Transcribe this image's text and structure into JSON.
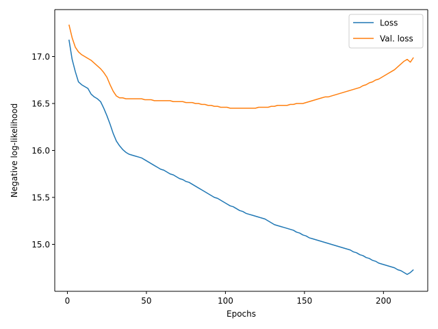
{
  "chart_data": {
    "type": "line",
    "xlabel": "Epochs",
    "ylabel": "Negative log-likelihood",
    "xlim": [
      -8,
      228
    ],
    "ylim": [
      14.5,
      17.5
    ],
    "xticks": [
      0,
      50,
      100,
      150,
      200
    ],
    "yticks": [
      15.0,
      15.5,
      16.0,
      16.5,
      17.0
    ],
    "xtick_labels": [
      "0",
      "50",
      "100",
      "150",
      "200"
    ],
    "ytick_labels": [
      "15.0",
      "15.5",
      "16.0",
      "16.5",
      "17.0"
    ],
    "grid": false,
    "legend_position": "top-right",
    "series": [
      {
        "name": "Loss",
        "color": "#1f77b4",
        "points": [
          [
            1,
            17.18
          ],
          [
            3,
            16.97
          ],
          [
            5,
            16.84
          ],
          [
            7,
            16.73
          ],
          [
            9,
            16.7
          ],
          [
            11,
            16.68
          ],
          [
            13,
            16.66
          ],
          [
            15,
            16.6
          ],
          [
            17,
            16.57
          ],
          [
            19,
            16.55
          ],
          [
            21,
            16.52
          ],
          [
            23,
            16.45
          ],
          [
            25,
            16.37
          ],
          [
            27,
            16.28
          ],
          [
            29,
            16.18
          ],
          [
            31,
            16.1
          ],
          [
            33,
            16.05
          ],
          [
            35,
            16.01
          ],
          [
            37,
            15.98
          ],
          [
            39,
            15.96
          ],
          [
            41,
            15.95
          ],
          [
            43,
            15.94
          ],
          [
            45,
            15.93
          ],
          [
            47,
            15.92
          ],
          [
            49,
            15.9
          ],
          [
            51,
            15.88
          ],
          [
            53,
            15.86
          ],
          [
            55,
            15.84
          ],
          [
            57,
            15.82
          ],
          [
            59,
            15.8
          ],
          [
            61,
            15.79
          ],
          [
            63,
            15.77
          ],
          [
            65,
            15.75
          ],
          [
            67,
            15.74
          ],
          [
            69,
            15.72
          ],
          [
            71,
            15.7
          ],
          [
            73,
            15.69
          ],
          [
            75,
            15.67
          ],
          [
            77,
            15.66
          ],
          [
            79,
            15.64
          ],
          [
            81,
            15.62
          ],
          [
            83,
            15.6
          ],
          [
            85,
            15.58
          ],
          [
            87,
            15.56
          ],
          [
            89,
            15.54
          ],
          [
            91,
            15.52
          ],
          [
            93,
            15.5
          ],
          [
            95,
            15.49
          ],
          [
            97,
            15.47
          ],
          [
            99,
            15.45
          ],
          [
            101,
            15.43
          ],
          [
            103,
            15.41
          ],
          [
            105,
            15.4
          ],
          [
            107,
            15.38
          ],
          [
            109,
            15.36
          ],
          [
            111,
            15.35
          ],
          [
            113,
            15.33
          ],
          [
            115,
            15.32
          ],
          [
            117,
            15.31
          ],
          [
            119,
            15.3
          ],
          [
            121,
            15.29
          ],
          [
            123,
            15.28
          ],
          [
            125,
            15.27
          ],
          [
            127,
            15.25
          ],
          [
            129,
            15.23
          ],
          [
            131,
            15.21
          ],
          [
            133,
            15.2
          ],
          [
            135,
            15.19
          ],
          [
            137,
            15.18
          ],
          [
            139,
            15.17
          ],
          [
            141,
            15.16
          ],
          [
            143,
            15.15
          ],
          [
            145,
            15.13
          ],
          [
            147,
            15.12
          ],
          [
            149,
            15.1
          ],
          [
            151,
            15.09
          ],
          [
            153,
            15.07
          ],
          [
            155,
            15.06
          ],
          [
            157,
            15.05
          ],
          [
            159,
            15.04
          ],
          [
            161,
            15.03
          ],
          [
            163,
            15.02
          ],
          [
            165,
            15.01
          ],
          [
            167,
            15.0
          ],
          [
            169,
            14.99
          ],
          [
            171,
            14.98
          ],
          [
            173,
            14.97
          ],
          [
            175,
            14.96
          ],
          [
            177,
            14.95
          ],
          [
            179,
            14.94
          ],
          [
            181,
            14.92
          ],
          [
            183,
            14.91
          ],
          [
            185,
            14.89
          ],
          [
            187,
            14.88
          ],
          [
            189,
            14.86
          ],
          [
            191,
            14.85
          ],
          [
            193,
            14.83
          ],
          [
            195,
            14.82
          ],
          [
            197,
            14.8
          ],
          [
            199,
            14.79
          ],
          [
            201,
            14.78
          ],
          [
            203,
            14.77
          ],
          [
            205,
            14.76
          ],
          [
            207,
            14.75
          ],
          [
            209,
            14.73
          ],
          [
            211,
            14.72
          ],
          [
            213,
            14.7
          ],
          [
            215,
            14.68
          ],
          [
            217,
            14.7
          ],
          [
            219,
            14.73
          ]
        ]
      },
      {
        "name": "Val. loss",
        "color": "#ff7f0e",
        "points": [
          [
            1,
            17.34
          ],
          [
            3,
            17.2
          ],
          [
            5,
            17.1
          ],
          [
            7,
            17.05
          ],
          [
            9,
            17.02
          ],
          [
            11,
            17.0
          ],
          [
            13,
            16.98
          ],
          [
            15,
            16.96
          ],
          [
            17,
            16.93
          ],
          [
            19,
            16.9
          ],
          [
            21,
            16.87
          ],
          [
            23,
            16.83
          ],
          [
            25,
            16.78
          ],
          [
            27,
            16.7
          ],
          [
            29,
            16.63
          ],
          [
            31,
            16.58
          ],
          [
            33,
            16.56
          ],
          [
            35,
            16.56
          ],
          [
            37,
            16.55
          ],
          [
            39,
            16.55
          ],
          [
            41,
            16.55
          ],
          [
            43,
            16.55
          ],
          [
            45,
            16.55
          ],
          [
            47,
            16.55
          ],
          [
            49,
            16.54
          ],
          [
            51,
            16.54
          ],
          [
            53,
            16.54
          ],
          [
            55,
            16.53
          ],
          [
            57,
            16.53
          ],
          [
            59,
            16.53
          ],
          [
            61,
            16.53
          ],
          [
            63,
            16.53
          ],
          [
            65,
            16.53
          ],
          [
            67,
            16.52
          ],
          [
            69,
            16.52
          ],
          [
            71,
            16.52
          ],
          [
            73,
            16.52
          ],
          [
            75,
            16.51
          ],
          [
            77,
            16.51
          ],
          [
            79,
            16.51
          ],
          [
            81,
            16.5
          ],
          [
            83,
            16.5
          ],
          [
            85,
            16.49
          ],
          [
            87,
            16.49
          ],
          [
            89,
            16.48
          ],
          [
            91,
            16.48
          ],
          [
            93,
            16.47
          ],
          [
            95,
            16.47
          ],
          [
            97,
            16.46
          ],
          [
            99,
            16.46
          ],
          [
            101,
            16.46
          ],
          [
            103,
            16.45
          ],
          [
            105,
            16.45
          ],
          [
            107,
            16.45
          ],
          [
            109,
            16.45
          ],
          [
            111,
            16.45
          ],
          [
            113,
            16.45
          ],
          [
            115,
            16.45
          ],
          [
            117,
            16.45
          ],
          [
            119,
            16.45
          ],
          [
            121,
            16.46
          ],
          [
            123,
            16.46
          ],
          [
            125,
            16.46
          ],
          [
            127,
            16.46
          ],
          [
            129,
            16.47
          ],
          [
            131,
            16.47
          ],
          [
            133,
            16.48
          ],
          [
            135,
            16.48
          ],
          [
            137,
            16.48
          ],
          [
            139,
            16.48
          ],
          [
            141,
            16.49
          ],
          [
            143,
            16.49
          ],
          [
            145,
            16.5
          ],
          [
            147,
            16.5
          ],
          [
            149,
            16.5
          ],
          [
            151,
            16.51
          ],
          [
            153,
            16.52
          ],
          [
            155,
            16.53
          ],
          [
            157,
            16.54
          ],
          [
            159,
            16.55
          ],
          [
            161,
            16.56
          ],
          [
            163,
            16.57
          ],
          [
            165,
            16.57
          ],
          [
            167,
            16.58
          ],
          [
            169,
            16.59
          ],
          [
            171,
            16.6
          ],
          [
            173,
            16.61
          ],
          [
            175,
            16.62
          ],
          [
            177,
            16.63
          ],
          [
            179,
            16.64
          ],
          [
            181,
            16.65
          ],
          [
            183,
            16.66
          ],
          [
            185,
            16.67
          ],
          [
            187,
            16.69
          ],
          [
            189,
            16.7
          ],
          [
            191,
            16.72
          ],
          [
            193,
            16.73
          ],
          [
            195,
            16.75
          ],
          [
            197,
            16.76
          ],
          [
            199,
            16.78
          ],
          [
            201,
            16.8
          ],
          [
            203,
            16.82
          ],
          [
            205,
            16.84
          ],
          [
            207,
            16.86
          ],
          [
            209,
            16.89
          ],
          [
            211,
            16.92
          ],
          [
            213,
            16.95
          ],
          [
            215,
            16.97
          ],
          [
            217,
            16.94
          ],
          [
            219,
            16.99
          ]
        ]
      }
    ]
  }
}
